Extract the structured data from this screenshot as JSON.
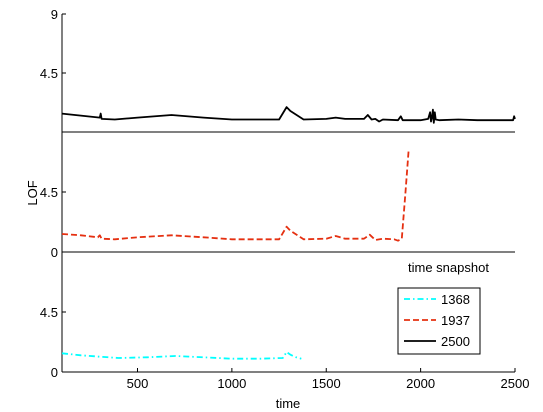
{
  "chart_data": {
    "type": "line",
    "xlabel": "time",
    "ylabel": "LOF",
    "xlim": [
      100,
      2500
    ],
    "x_ticks": [
      500,
      1000,
      1500,
      2000,
      2500
    ],
    "x_tick_labels": [
      "500",
      "1000",
      "1500",
      "2000",
      "2500"
    ],
    "annotation": "time snapshot",
    "grid": false,
    "legend_position": "lower-right",
    "panels": [
      {
        "ylim": [
          0,
          9
        ],
        "y_ticks": [
          9,
          4.5
        ],
        "y_tick_labels": [
          "9",
          "4.5"
        ],
        "series_index": 2
      },
      {
        "ylim": [
          0,
          9
        ],
        "y_ticks": [
          0,
          4.5
        ],
        "y_tick_labels": [
          "0",
          "4.5"
        ],
        "series_index": 1
      },
      {
        "ylim": [
          0,
          9
        ],
        "y_ticks": [
          0,
          4.5
        ],
        "y_tick_labels": [
          "0",
          "4.5"
        ],
        "series_index": 0
      }
    ],
    "series": [
      {
        "name": "1368",
        "color": "#00ffff",
        "dash": "dashdot",
        "points": [
          [
            100,
            1.4
          ],
          [
            200,
            1.25
          ],
          [
            300,
            1.15
          ],
          [
            400,
            1.05
          ],
          [
            550,
            1.1
          ],
          [
            700,
            1.2
          ],
          [
            850,
            1.1
          ],
          [
            1000,
            1.0
          ],
          [
            1150,
            1.0
          ],
          [
            1270,
            1.05
          ],
          [
            1290,
            1.5
          ],
          [
            1310,
            1.3
          ],
          [
            1340,
            1.1
          ],
          [
            1368,
            1.0
          ]
        ]
      },
      {
        "name": "1937",
        "color": "#e53011",
        "dash": "dashed",
        "points": [
          [
            100,
            1.35
          ],
          [
            200,
            1.25
          ],
          [
            290,
            1.1
          ],
          [
            300,
            1.25
          ],
          [
            310,
            1.0
          ],
          [
            380,
            0.95
          ],
          [
            500,
            1.1
          ],
          [
            680,
            1.25
          ],
          [
            850,
            1.1
          ],
          [
            1000,
            0.95
          ],
          [
            1150,
            0.95
          ],
          [
            1250,
            0.95
          ],
          [
            1290,
            1.9
          ],
          [
            1310,
            1.6
          ],
          [
            1380,
            0.95
          ],
          [
            1500,
            1.0
          ],
          [
            1550,
            1.2
          ],
          [
            1600,
            1.0
          ],
          [
            1700,
            1.0
          ],
          [
            1730,
            1.3
          ],
          [
            1760,
            0.9
          ],
          [
            1800,
            1.0
          ],
          [
            1860,
            0.95
          ],
          [
            1880,
            0.85
          ],
          [
            1900,
            1.0
          ],
          [
            1920,
            4.5
          ],
          [
            1937,
            7.7
          ]
        ]
      },
      {
        "name": "2500",
        "color": "#000000",
        "dash": "solid",
        "points": [
          [
            100,
            1.4
          ],
          [
            200,
            1.25
          ],
          [
            300,
            1.1
          ],
          [
            305,
            1.4
          ],
          [
            310,
            1.0
          ],
          [
            380,
            0.95
          ],
          [
            500,
            1.1
          ],
          [
            680,
            1.3
          ],
          [
            850,
            1.1
          ],
          [
            1000,
            0.95
          ],
          [
            1150,
            0.95
          ],
          [
            1250,
            0.95
          ],
          [
            1290,
            1.9
          ],
          [
            1310,
            1.6
          ],
          [
            1380,
            0.95
          ],
          [
            1500,
            1.0
          ],
          [
            1550,
            1.1
          ],
          [
            1600,
            1.0
          ],
          [
            1650,
            1.0
          ],
          [
            1700,
            1.0
          ],
          [
            1720,
            1.3
          ],
          [
            1740,
            0.95
          ],
          [
            1760,
            1.0
          ],
          [
            1780,
            0.8
          ],
          [
            1800,
            0.95
          ],
          [
            1880,
            0.9
          ],
          [
            1895,
            1.2
          ],
          [
            1905,
            0.9
          ],
          [
            2000,
            0.9
          ],
          [
            2040,
            1.0
          ],
          [
            2050,
            1.5
          ],
          [
            2055,
            0.8
          ],
          [
            2060,
            1.1
          ],
          [
            2065,
            1.7
          ],
          [
            2070,
            0.7
          ],
          [
            2075,
            1.5
          ],
          [
            2080,
            0.95
          ],
          [
            2100,
            0.9
          ],
          [
            2200,
            0.95
          ],
          [
            2300,
            0.9
          ],
          [
            2400,
            0.9
          ],
          [
            2490,
            0.9
          ],
          [
            2495,
            1.2
          ],
          [
            2500,
            1.0
          ]
        ]
      }
    ]
  }
}
